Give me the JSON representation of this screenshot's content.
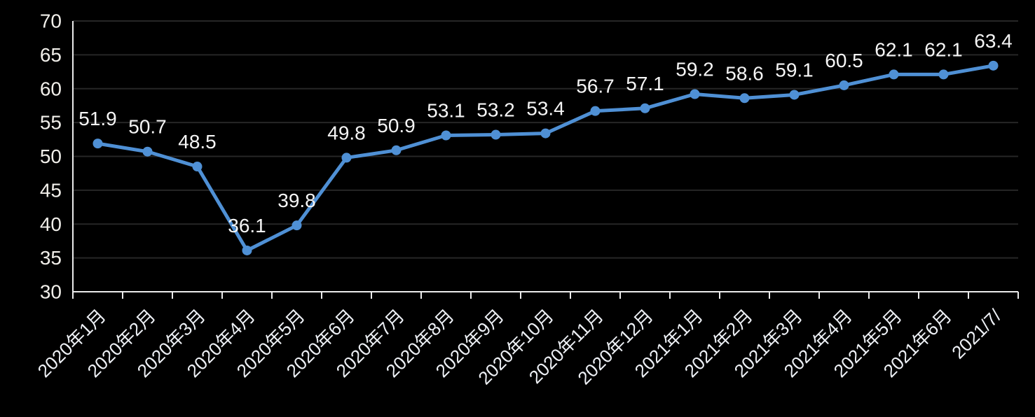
{
  "chart_data": {
    "type": "line",
    "title": "",
    "xlabel": "",
    "ylabel": "",
    "categories": [
      "2020年1月",
      "2020年2月",
      "2020年3月",
      "2020年4月",
      "2020年5月",
      "2020年6月",
      "2020年7月",
      "2020年8月",
      "2020年9月",
      "2020年10月",
      "2020年11月",
      "2020年12月",
      "2021年1月",
      "2021年2月",
      "2021年3月",
      "2021年4月",
      "2021年5月",
      "2021年6月",
      "2021/7/"
    ],
    "values": [
      51.9,
      50.7,
      48.5,
      36.1,
      39.8,
      49.8,
      50.9,
      53.1,
      53.2,
      53.4,
      56.7,
      57.1,
      59.2,
      58.6,
      59.1,
      60.5,
      62.1,
      62.1,
      63.4
    ],
    "data_labels": [
      "51.9",
      "50.7",
      "48.5",
      "36.1",
      "39.8",
      "49.8",
      "50.9",
      "53.1",
      "53.2",
      "53.4",
      "56.7",
      "57.1",
      "59.2",
      "58.6",
      "59.1",
      "60.5",
      "62.1",
      "62.1",
      "63.4"
    ],
    "ylim": [
      30,
      70
    ],
    "yticks": [
      30,
      35,
      40,
      45,
      50,
      55,
      60,
      65,
      70
    ],
    "grid": true,
    "legend_position": "none",
    "marker_shape": "circle",
    "x_label_rotation_deg": 45,
    "colors": {
      "background": "#000000",
      "line": "#4f90d5",
      "marker": "#4f90d5",
      "gridline": "#262626",
      "axis": "#ebebeb",
      "y_tick_label": "#f1efea",
      "x_tick_label": "#eef1f6",
      "data_label": "#f5f5f5"
    }
  }
}
